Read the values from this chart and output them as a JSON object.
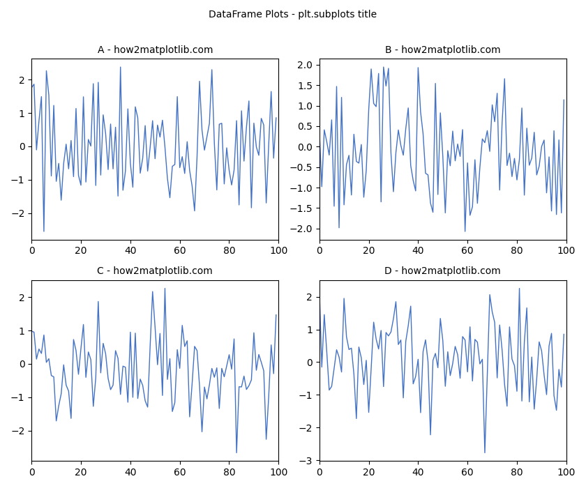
{
  "title": "DataFrame Plots - plt.subplots title",
  "subplot_titles": [
    "A - how2matplotlib.com",
    "B - how2matplotlib.com",
    "C - how2matplotlib.com",
    "D - how2matplotlib.com"
  ],
  "n_points": 100,
  "line_color": "#4472c4",
  "line_width": 1.0,
  "title_fontsize": 10,
  "subplot_title_fontsize": 10,
  "figsize": [
    8.4,
    7.0
  ],
  "dpi": 100,
  "background_color": "#ffffff"
}
